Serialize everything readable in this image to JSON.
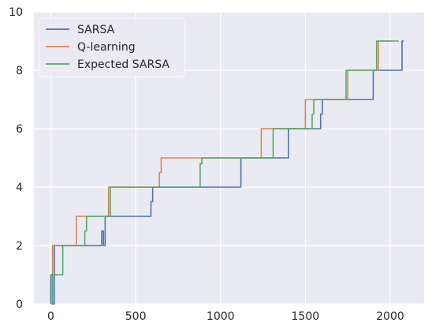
{
  "chart_data": {
    "type": "line",
    "title": "",
    "xlabel": "",
    "ylabel": "",
    "xlim": [
      -100,
      2200
    ],
    "ylim": [
      0,
      10
    ],
    "x_ticks": [
      0,
      500,
      1000,
      1500,
      2000
    ],
    "y_ticks": [
      0,
      2,
      4,
      6,
      8,
      10
    ],
    "grid": true,
    "background": "#EAEAF2",
    "legend_position": "upper-left",
    "series": [
      {
        "name": "SARSA",
        "color": "#4C72B0",
        "x": [
          0,
          0,
          10,
          10,
          20,
          20,
          30,
          30,
          300,
          300,
          310,
          310,
          320,
          320,
          590,
          590,
          600,
          600,
          1120,
          1120,
          1400,
          1400,
          1590,
          1590,
          1600,
          1600,
          1750,
          1750,
          1900,
          1900,
          2070,
          2070,
          2080
        ],
        "y": [
          0,
          1,
          1,
          0,
          0,
          2,
          2,
          2,
          2,
          2.5,
          2.5,
          2,
          2,
          3,
          3,
          3.5,
          3.5,
          4,
          4,
          5,
          5,
          6,
          6,
          6.5,
          6.5,
          7,
          7,
          7,
          7,
          8,
          8,
          9,
          9
        ]
      },
      {
        "name": "Q-learning",
        "color": "#DD8452",
        "x": [
          0,
          10,
          10,
          150,
          150,
          340,
          340,
          640,
          640,
          650,
          650,
          1240,
          1240,
          1500,
          1500,
          1560,
          1560,
          1750,
          1750,
          1930,
          1930,
          2000
        ],
        "y": [
          0,
          0,
          2,
          2,
          3,
          3,
          4,
          4,
          4.5,
          4.5,
          5,
          5,
          6,
          6,
          7,
          7,
          7,
          7,
          8,
          8,
          9,
          9
        ]
      },
      {
        "name": "Expected SARSA",
        "color": "#55A868",
        "x": [
          10,
          10,
          20,
          20,
          70,
          70,
          200,
          200,
          210,
          210,
          350,
          350,
          880,
          880,
          890,
          890,
          1310,
          1310,
          1540,
          1540,
          1550,
          1550,
          1740,
          1740,
          1920,
          1920,
          2050
        ],
        "y": [
          0,
          1,
          1,
          1,
          1,
          2,
          2,
          2.5,
          2.5,
          3,
          3,
          4,
          4,
          4.8,
          4.8,
          5,
          5,
          6,
          6,
          6.5,
          6.5,
          7,
          7,
          8,
          8,
          9,
          9
        ]
      }
    ]
  }
}
